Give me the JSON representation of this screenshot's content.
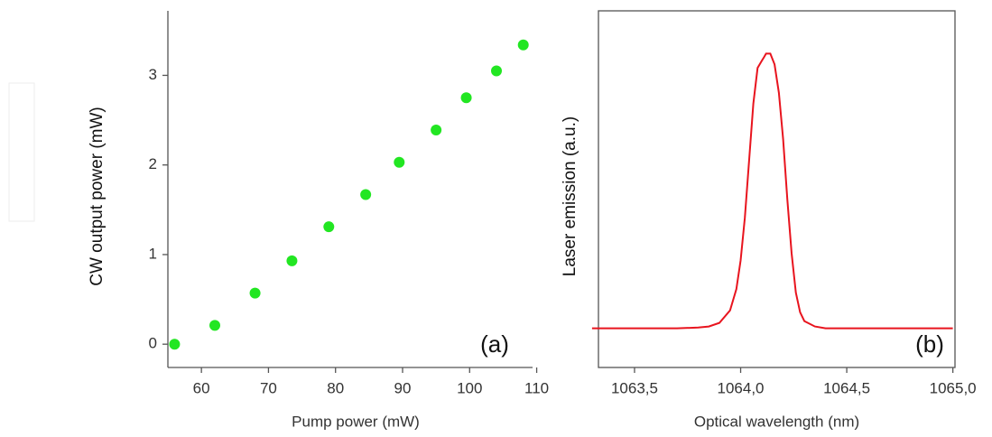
{
  "chart_data": [
    {
      "type": "scatter",
      "xlabel": "Pump power (mW)",
      "ylabel": "CW output power (mW)",
      "annotation": "(a)",
      "color": "#22e622",
      "series": [
        {
          "x": [
            56,
            62,
            68,
            73.5,
            79,
            84.5,
            89.5,
            95,
            99.5,
            104,
            108
          ],
          "values": [
            0.0,
            0.21,
            0.57,
            0.93,
            1.31,
            1.67,
            2.03,
            2.39,
            2.75,
            3.05,
            3.34
          ]
        }
      ],
      "xlim": [
        55,
        111
      ],
      "xticks": [
        60,
        70,
        80,
        90,
        100,
        110
      ],
      "ylim": [
        -0.26,
        3.72
      ],
      "yticks": [
        0,
        1,
        2,
        3
      ]
    },
    {
      "type": "line",
      "xlabel": "Optical wavelength (nm)",
      "ylabel": "Laser emission (a.u.)",
      "annotation": "(b)",
      "color": "#e8141e",
      "series": [
        {
          "x": [
            1063.3,
            1063.5,
            1063.7,
            1063.8,
            1063.85,
            1063.9,
            1063.95,
            1063.98,
            1064.0,
            1064.02,
            1064.04,
            1064.06,
            1064.08,
            1064.1,
            1064.11,
            1064.12,
            1064.14,
            1064.16,
            1064.18,
            1064.2,
            1064.22,
            1064.24,
            1064.26,
            1064.28,
            1064.3,
            1064.35,
            1064.4,
            1064.6,
            1064.8,
            1065.0
          ],
          "values": [
            0.11,
            0.11,
            0.11,
            0.112,
            0.115,
            0.125,
            0.16,
            0.22,
            0.3,
            0.42,
            0.58,
            0.74,
            0.84,
            0.86,
            0.87,
            0.88,
            0.88,
            0.85,
            0.77,
            0.64,
            0.47,
            0.32,
            0.21,
            0.155,
            0.13,
            0.115,
            0.11,
            0.11,
            0.11,
            0.11
          ]
        }
      ],
      "xlim": [
        1063.33,
        1065.01
      ],
      "xticks": [
        {
          "value": 1063.5,
          "label": "1063,5"
        },
        {
          "value": 1064.0,
          "label": "1064,0"
        },
        {
          "value": 1064.5,
          "label": "1064,5"
        },
        {
          "value": 1065.0,
          "label": "1065,0"
        }
      ],
      "ylim": [
        0,
        1
      ]
    }
  ]
}
